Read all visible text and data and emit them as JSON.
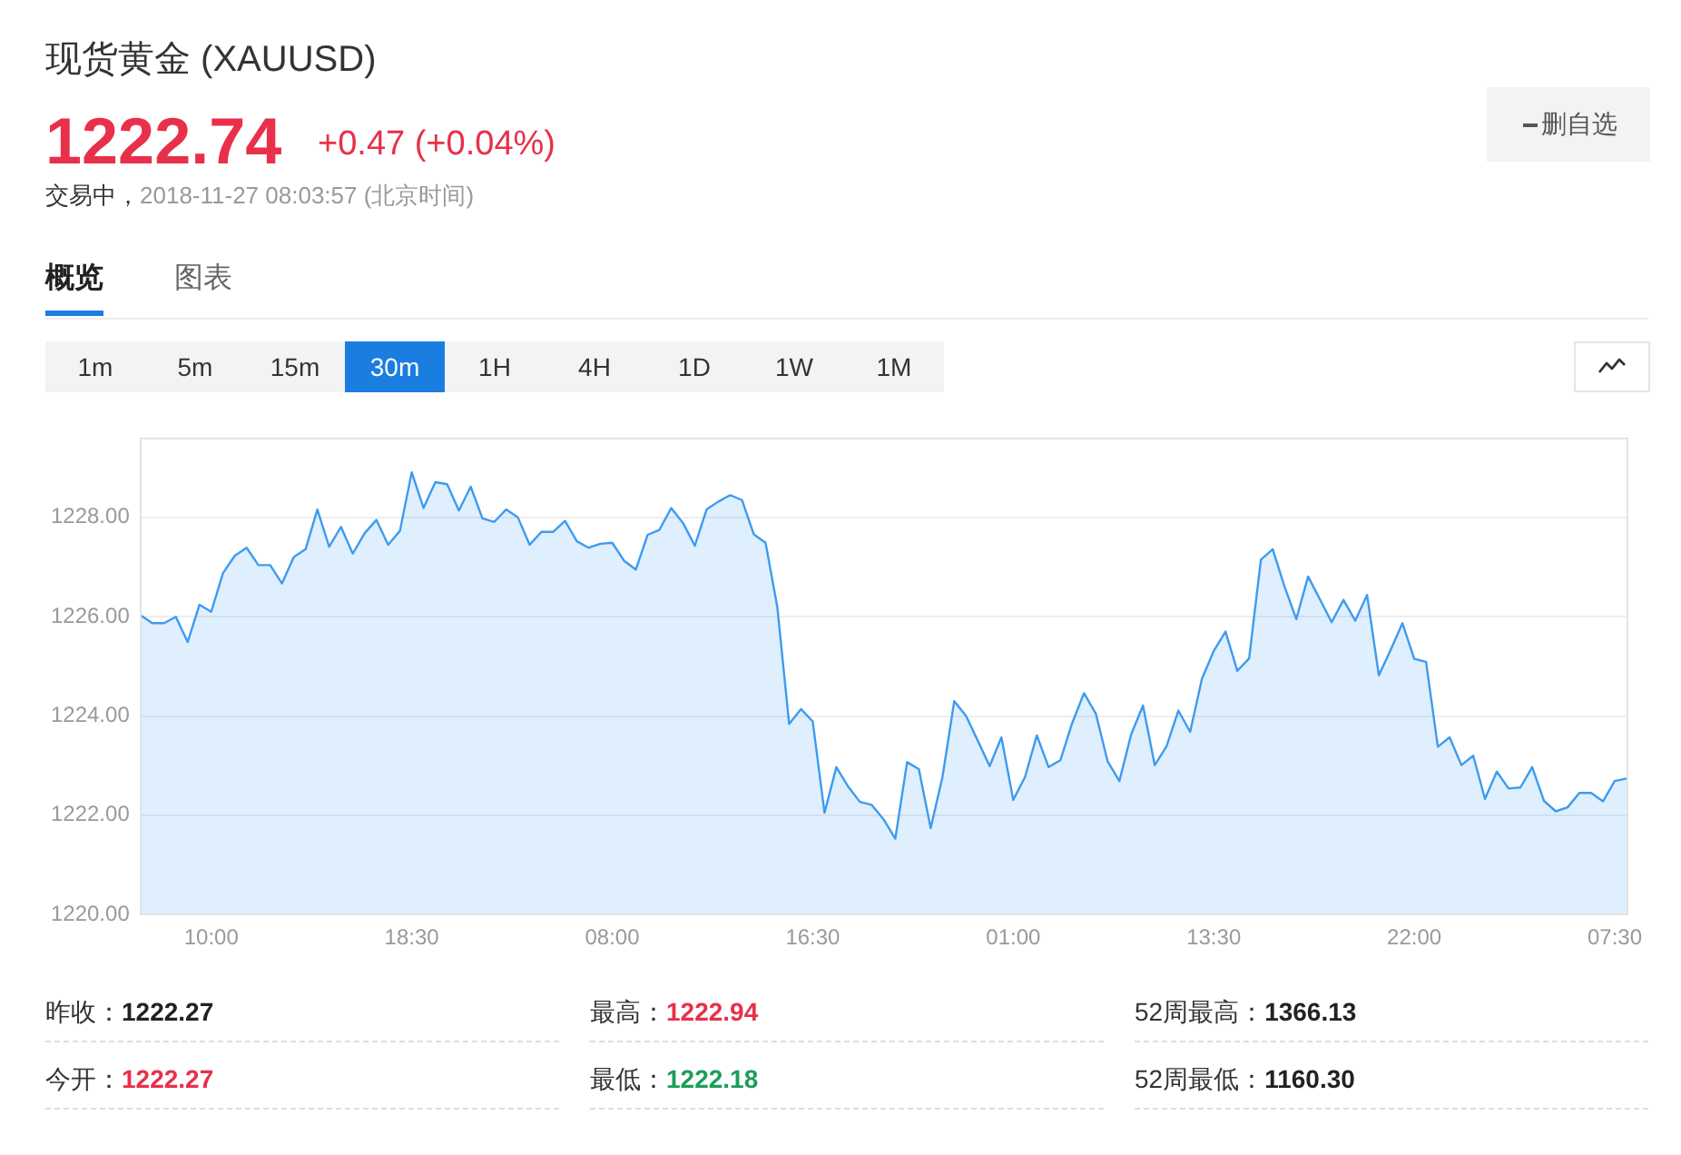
{
  "chart_data": {
    "type": "area",
    "title": "现货黄金 (XAUUSD)",
    "annotations": [
      "1222.74",
      "+0.47 (+0.04%)",
      "交易中，",
      "2018-11-27 08:03:57 (北京时间)",
      "删自选",
      "概览",
      "图表",
      "1m",
      "5m",
      "15m",
      "30m",
      "1H",
      "4H",
      "1D",
      "1W",
      "1M",
      "昨收：",
      "1222.27",
      "最高：",
      "1222.94",
      "52周最高：",
      "1366.13",
      "今开：",
      "1222.27",
      "最低：",
      "1222.18",
      "52周最低：",
      "1160.30"
    ],
    "categories": [
      null,
      null,
      null,
      null,
      null,
      null,
      "10:00",
      null,
      null,
      null,
      null,
      null,
      null,
      null,
      null,
      null,
      null,
      null,
      null,
      null,
      null,
      null,
      null,
      "18:30",
      null,
      null,
      null,
      null,
      null,
      null,
      null,
      null,
      null,
      null,
      null,
      null,
      null,
      null,
      null,
      null,
      "08:00",
      null,
      null,
      null,
      null,
      null,
      null,
      null,
      null,
      null,
      null,
      null,
      null,
      null,
      null,
      null,
      null,
      "16:30",
      null,
      null,
      null,
      null,
      null,
      null,
      null,
      null,
      null,
      null,
      null,
      null,
      null,
      null,
      null,
      null,
      "01:00",
      null,
      null,
      null,
      null,
      null,
      null,
      null,
      null,
      null,
      null,
      null,
      null,
      null,
      null,
      null,
      null,
      "13:30",
      null,
      null,
      null,
      null,
      null,
      null,
      null,
      null,
      null,
      null,
      null,
      null,
      null,
      null,
      null,
      null,
      "22:00",
      null,
      null,
      null,
      null,
      null,
      null,
      null,
      null,
      null,
      null,
      null,
      null,
      null,
      null,
      null,
      null,
      "07:30",
      null
    ],
    "values": [
      1226.03,
      1225.87,
      1225.87,
      1226.0,
      1225.49,
      1226.24,
      1226.1,
      1226.88,
      1227.23,
      1227.39,
      1227.04,
      1227.04,
      1226.67,
      1227.2,
      1227.36,
      1228.16,
      1227.41,
      1227.81,
      1227.27,
      1227.68,
      1227.95,
      1227.45,
      1227.73,
      1228.91,
      1228.19,
      1228.71,
      1228.67,
      1228.14,
      1228.62,
      1227.98,
      1227.91,
      1228.16,
      1228.0,
      1227.45,
      1227.71,
      1227.71,
      1227.93,
      1227.52,
      1227.39,
      1227.47,
      1227.49,
      1227.13,
      1226.95,
      1227.65,
      1227.75,
      1228.19,
      1227.89,
      1227.43,
      1228.16,
      1228.32,
      1228.45,
      1228.35,
      1227.66,
      1227.49,
      1226.19,
      1223.84,
      1224.14,
      1223.89,
      1222.05,
      1222.97,
      1222.58,
      1222.27,
      1222.21,
      1221.92,
      1221.53,
      1223.07,
      1222.93,
      1221.74,
      1222.77,
      1224.3,
      1224.0,
      1223.5,
      1222.99,
      1223.57,
      1222.31,
      1222.77,
      1223.61,
      1222.97,
      1223.11,
      1223.86,
      1224.46,
      1224.05,
      1223.09,
      1222.69,
      1223.63,
      1224.21,
      1223.01,
      1223.39,
      1224.11,
      1223.68,
      1224.75,
      1225.31,
      1225.7,
      1224.91,
      1225.16,
      1227.15,
      1227.36,
      1226.61,
      1225.95,
      1226.81,
      1226.35,
      1225.89,
      1226.34,
      1225.92,
      1226.44,
      1224.82,
      1225.33,
      1225.87,
      1225.15,
      1225.09,
      1223.38,
      1223.57,
      1223.01,
      1223.2,
      1222.33,
      1222.88,
      1222.54,
      1222.56,
      1222.97,
      1222.29,
      1222.08,
      1222.16,
      1222.45,
      1222.45,
      1222.28,
      1222.69,
      1222.74
    ],
    "color": "#3d9bf0",
    "ylim": [
      1220,
      1229.6
    ],
    "yticks": [
      {
        "value": 1220,
        "label": "1220.00"
      },
      {
        "value": 1222,
        "label": "1222.00"
      },
      {
        "value": 1224,
        "label": "1224.00"
      },
      {
        "value": 1226,
        "label": "1226.00"
      },
      {
        "value": 1228,
        "label": "1228.00"
      }
    ],
    "grid": "y",
    "marker": "none"
  }
}
